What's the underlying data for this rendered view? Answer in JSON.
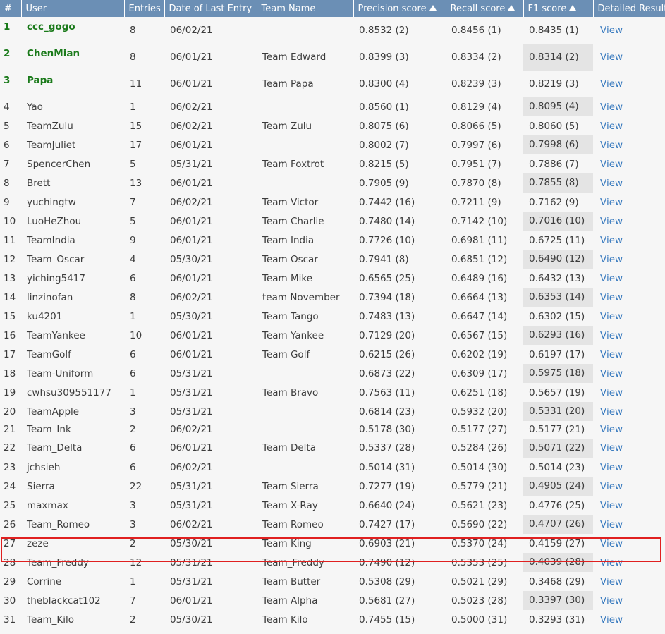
{
  "columns": {
    "rank": "#",
    "user": "User",
    "entries": "Entries",
    "date": "Date of Last Entry",
    "team": "Team Name",
    "precision": "Precision score",
    "recall": "Recall score",
    "f1": "F1 score",
    "details": "Detailed Results"
  },
  "view_label": "View",
  "rows": [
    {
      "rank": "1",
      "user": "ccc_gogo",
      "entries": "8",
      "date": "06/02/21",
      "team": "",
      "precision": "0.8532 (2)",
      "recall": "0.8456 (1)",
      "f1": "0.8435 (1)"
    },
    {
      "rank": "2",
      "user": "ChenMian",
      "entries": "8",
      "date": "06/01/21",
      "team": "Team Edward",
      "precision": "0.8399 (3)",
      "recall": "0.8334 (2)",
      "f1": "0.8314 (2)"
    },
    {
      "rank": "3",
      "user": "Papa",
      "entries": "11",
      "date": "06/01/21",
      "team": "Team Papa",
      "precision": "0.8300 (4)",
      "recall": "0.8239 (3)",
      "f1": "0.8219 (3)"
    },
    {
      "rank": "4",
      "user": "Yao",
      "entries": "1",
      "date": "06/02/21",
      "team": "",
      "precision": "0.8560 (1)",
      "recall": "0.8129 (4)",
      "f1": "0.8095 (4)"
    },
    {
      "rank": "5",
      "user": "TeamZulu",
      "entries": "15",
      "date": "06/02/21",
      "team": "Team Zulu",
      "precision": "0.8075 (6)",
      "recall": "0.8066 (5)",
      "f1": "0.8060 (5)"
    },
    {
      "rank": "6",
      "user": "TeamJuliet",
      "entries": "17",
      "date": "06/01/21",
      "team": "",
      "precision": "0.8002 (7)",
      "recall": "0.7997 (6)",
      "f1": "0.7998 (6)"
    },
    {
      "rank": "7",
      "user": "SpencerChen",
      "entries": "5",
      "date": "05/31/21",
      "team": "Team Foxtrot",
      "precision": "0.8215 (5)",
      "recall": "0.7951 (7)",
      "f1": "0.7886 (7)"
    },
    {
      "rank": "8",
      "user": "Brett",
      "entries": "13",
      "date": "06/01/21",
      "team": "",
      "precision": "0.7905 (9)",
      "recall": "0.7870 (8)",
      "f1": "0.7855 (8)"
    },
    {
      "rank": "9",
      "user": "yuchingtw",
      "entries": "7",
      "date": "06/02/21",
      "team": "Team Victor",
      "precision": "0.7442 (16)",
      "recall": "0.7211 (9)",
      "f1": "0.7162 (9)"
    },
    {
      "rank": "10",
      "user": "LuoHeZhou",
      "entries": "5",
      "date": "06/01/21",
      "team": "Team Charlie",
      "precision": "0.7480 (14)",
      "recall": "0.7142 (10)",
      "f1": "0.7016 (10)"
    },
    {
      "rank": "11",
      "user": "TeamIndia",
      "entries": "9",
      "date": "06/01/21",
      "team": "Team India",
      "precision": "0.7726 (10)",
      "recall": "0.6981 (11)",
      "f1": "0.6725 (11)"
    },
    {
      "rank": "12",
      "user": "Team_Oscar",
      "entries": "4",
      "date": "05/30/21",
      "team": "Team Oscar",
      "precision": "0.7941 (8)",
      "recall": "0.6851 (12)",
      "f1": "0.6490 (12)"
    },
    {
      "rank": "13",
      "user": "yiching5417",
      "entries": "6",
      "date": "06/01/21",
      "team": "Team Mike",
      "precision": "0.6565 (25)",
      "recall": "0.6489 (16)",
      "f1": "0.6432 (13)"
    },
    {
      "rank": "14",
      "user": "linzinofan",
      "entries": "8",
      "date": "06/02/21",
      "team": "team November",
      "precision": "0.7394 (18)",
      "recall": "0.6664 (13)",
      "f1": "0.6353 (14)"
    },
    {
      "rank": "15",
      "user": "ku4201",
      "entries": "1",
      "date": "05/30/21",
      "team": "Team Tango",
      "precision": "0.7483 (13)",
      "recall": "0.6647 (14)",
      "f1": "0.6302 (15)"
    },
    {
      "rank": "16",
      "user": "TeamYankee",
      "entries": "10",
      "date": "06/01/21",
      "team": "Team Yankee",
      "precision": "0.7129 (20)",
      "recall": "0.6567 (15)",
      "f1": "0.6293 (16)"
    },
    {
      "rank": "17",
      "user": "TeamGolf",
      "entries": "6",
      "date": "06/01/21",
      "team": "Team Golf",
      "precision": "0.6215 (26)",
      "recall": "0.6202 (19)",
      "f1": "0.6197 (17)"
    },
    {
      "rank": "18",
      "user": "Team-Uniform",
      "entries": "6",
      "date": "05/31/21",
      "team": "",
      "precision": "0.6873 (22)",
      "recall": "0.6309 (17)",
      "f1": "0.5975 (18)"
    },
    {
      "rank": "19",
      "user": "cwhsu309551177",
      "entries": "1",
      "date": "05/31/21",
      "team": "Team Bravo",
      "precision": "0.7563 (11)",
      "recall": "0.6251 (18)",
      "f1": "0.5657 (19)"
    },
    {
      "rank": "20",
      "user": "TeamApple",
      "entries": "3",
      "date": "05/31/21",
      "team": "",
      "precision": "0.6814 (23)",
      "recall": "0.5932 (20)",
      "f1": "0.5331 (20)"
    },
    {
      "rank": "21",
      "user": "Team_Ink",
      "entries": "2",
      "date": "06/02/21",
      "team": "",
      "precision": "0.5178 (30)",
      "recall": "0.5177 (27)",
      "f1": "0.5177 (21)"
    },
    {
      "rank": "22",
      "user": "Team_Delta",
      "entries": "6",
      "date": "06/01/21",
      "team": "Team Delta",
      "precision": "0.5337 (28)",
      "recall": "0.5284 (26)",
      "f1": "0.5071 (22)"
    },
    {
      "rank": "23",
      "user": "jchsieh",
      "entries": "6",
      "date": "06/02/21",
      "team": "",
      "precision": "0.5014 (31)",
      "recall": "0.5014 (30)",
      "f1": "0.5014 (23)"
    },
    {
      "rank": "24",
      "user": "Sierra",
      "entries": "22",
      "date": "05/31/21",
      "team": "Team Sierra",
      "precision": "0.7277 (19)",
      "recall": "0.5779 (21)",
      "f1": "0.4905 (24)"
    },
    {
      "rank": "25",
      "user": "maxmax",
      "entries": "3",
      "date": "05/31/21",
      "team": "Team X-Ray",
      "precision": "0.6640 (24)",
      "recall": "0.5621 (23)",
      "f1": "0.4776 (25)"
    },
    {
      "rank": "26",
      "user": "Team_Romeo",
      "entries": "3",
      "date": "06/02/21",
      "team": "Team Romeo",
      "precision": "0.7427 (17)",
      "recall": "0.5690 (22)",
      "f1": "0.4707 (26)"
    },
    {
      "rank": "27",
      "user": "zeze",
      "entries": "2",
      "date": "05/30/21",
      "team": "Team King",
      "precision": "0.6903 (21)",
      "recall": "0.5370 (24)",
      "f1": "0.4159 (27)"
    },
    {
      "rank": "28",
      "user": "Team_Freddy",
      "entries": "12",
      "date": "05/31/21",
      "team": "Team_Freddy",
      "precision": "0.7490 (12)",
      "recall": "0.5353 (25)",
      "f1": "0.4039 (28)"
    },
    {
      "rank": "29",
      "user": "Corrine",
      "entries": "1",
      "date": "05/31/21",
      "team": "Team Butter",
      "precision": "0.5308 (29)",
      "recall": "0.5021 (29)",
      "f1": "0.3468 (29)"
    },
    {
      "rank": "30",
      "user": "theblackcat102",
      "entries": "7",
      "date": "06/01/21",
      "team": "Team Alpha",
      "precision": "0.5681 (27)",
      "recall": "0.5023 (28)",
      "f1": "0.3397 (30)"
    },
    {
      "rank": "31",
      "user": "Team_Kilo",
      "entries": "2",
      "date": "05/30/21",
      "team": "Team Kilo",
      "precision": "0.7455 (15)",
      "recall": "0.5000 (31)",
      "f1": "0.3293 (31)"
    }
  ],
  "colors": {
    "header_bg": "#6b8fb5",
    "top_user": "#1a7a1a",
    "link": "#3a7bbf",
    "highlight_border": "#e02020",
    "f1_shade": "#e4e4e4"
  }
}
